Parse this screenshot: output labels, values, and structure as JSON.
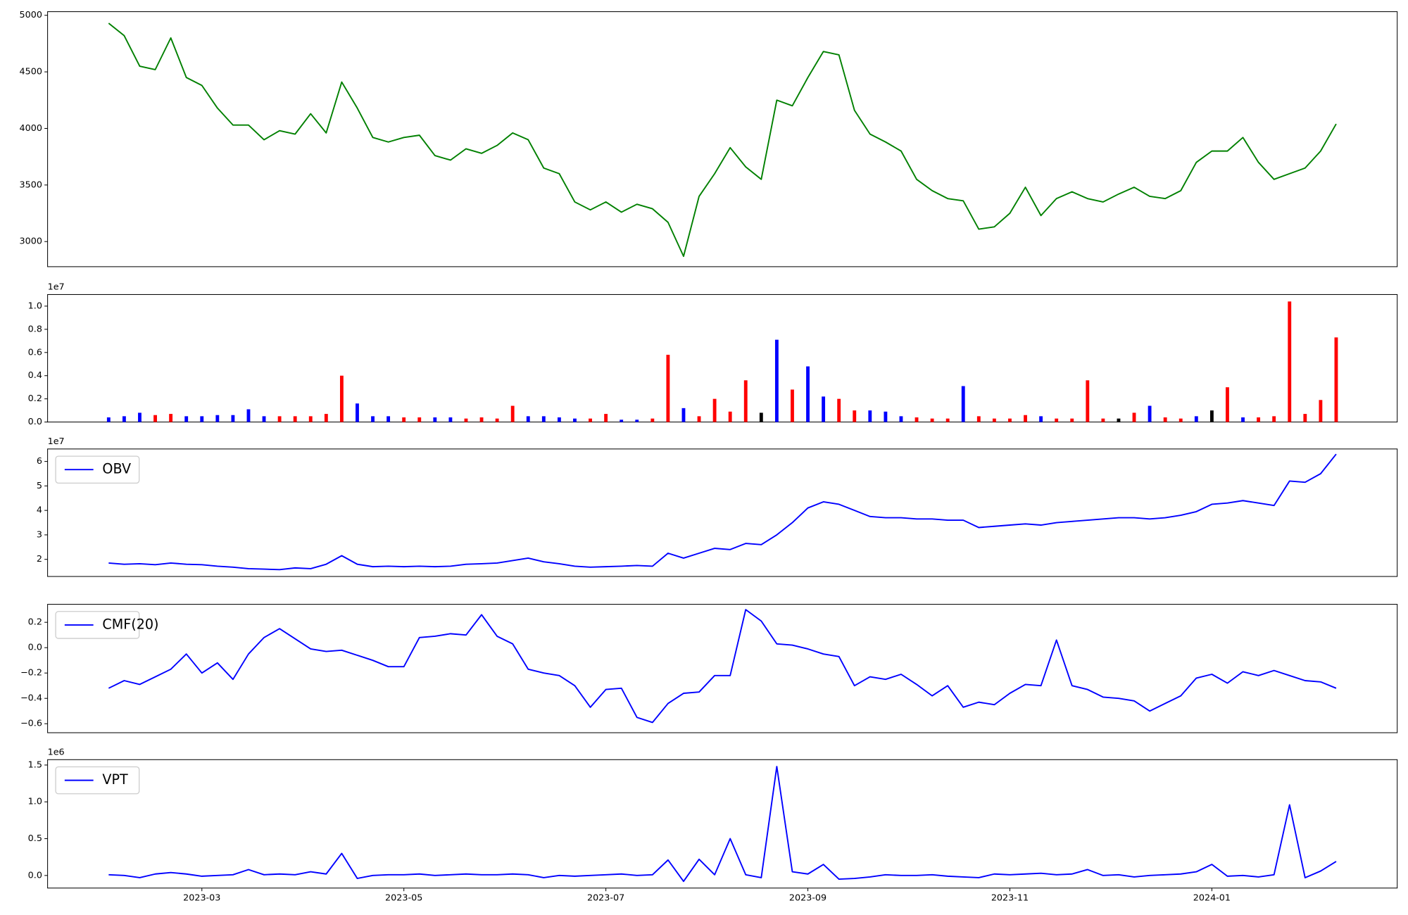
{
  "chart_data": [
    {
      "type": "line",
      "series": [
        {
          "color": "green",
          "values": [
            4930,
            4820,
            4550,
            4520,
            4800,
            4450,
            4380,
            4180,
            4030,
            4030,
            3900,
            3980,
            3950,
            4130,
            3960,
            4410,
            4180,
            3920,
            3880,
            3920,
            3940,
            3760,
            3720,
            3820,
            3780,
            3850,
            3960,
            3900,
            3650,
            3600,
            3350,
            3280,
            3350,
            3260,
            3330,
            3290,
            3170,
            2870,
            3400,
            3600,
            3830,
            3660,
            3550,
            4250,
            4200,
            4450,
            4680,
            4650,
            4160,
            3950,
            3880,
            3800,
            3550,
            3450,
            3380,
            3360,
            3110,
            3130,
            3250,
            3480,
            3230,
            3380,
            3440,
            3380,
            3350,
            3420,
            3480,
            3400,
            3380,
            3450,
            3700,
            3800,
            3800,
            3920,
            3700,
            3550,
            3600,
            3650,
            3800,
            4040
          ]
        }
      ],
      "ylim": [
        2778,
        5032
      ],
      "yticks": [
        3000,
        3500,
        4000,
        4500,
        5000
      ]
    },
    {
      "type": "bar",
      "offset_label": "1e7",
      "values": [
        0.04,
        0.05,
        0.08,
        0.06,
        0.07,
        0.05,
        0.05,
        0.06,
        0.06,
        0.11,
        0.05,
        0.05,
        0.05,
        0.05,
        0.07,
        0.4,
        0.16,
        0.05,
        0.05,
        0.04,
        0.04,
        0.04,
        0.04,
        0.03,
        0.04,
        0.03,
        0.14,
        0.05,
        0.05,
        0.04,
        0.03,
        0.03,
        0.07,
        0.02,
        0.02,
        0.03,
        0.58,
        0.12,
        0.05,
        0.2,
        0.09,
        0.36,
        0.08,
        0.71,
        0.28,
        0.48,
        0.22,
        0.2,
        0.1,
        0.1,
        0.09,
        0.05,
        0.04,
        0.03,
        0.03,
        0.31,
        0.05,
        0.03,
        0.03,
        0.06,
        0.05,
        0.03,
        0.03,
        0.36,
        0.03,
        0.03,
        0.08,
        0.14,
        0.04,
        0.03,
        0.05,
        0.1,
        0.3,
        0.04,
        0.04,
        0.05,
        1.04,
        0.07,
        0.19,
        0.73
      ],
      "bar_colors": [
        "blue",
        "blue",
        "blue",
        "red",
        "red",
        "blue",
        "blue",
        "blue",
        "blue",
        "blue",
        "blue",
        "red",
        "red",
        "red",
        "red",
        "red",
        "blue",
        "blue",
        "blue",
        "red",
        "red",
        "blue",
        "blue",
        "red",
        "red",
        "red",
        "red",
        "blue",
        "blue",
        "blue",
        "blue",
        "red",
        "red",
        "blue",
        "blue",
        "red",
        "red",
        "blue",
        "red",
        "red",
        "red",
        "red",
        "black",
        "blue",
        "red",
        "blue",
        "blue",
        "red",
        "red",
        "blue",
        "blue",
        "blue",
        "red",
        "red",
        "red",
        "blue",
        "red",
        "red",
        "red",
        "red",
        "blue",
        "red",
        "red",
        "red",
        "red",
        "black",
        "red",
        "blue",
        "red",
        "red",
        "blue",
        "black",
        "red",
        "blue",
        "red",
        "red",
        "red",
        "red",
        "red",
        "red"
      ],
      "ylim": [
        0,
        1.1
      ],
      "yticks": [
        {
          "value": 0,
          "label": "0.0"
        },
        0.2,
        0.4,
        0.6,
        0.8,
        {
          "value": 1,
          "label": "1.0"
        }
      ]
    },
    {
      "type": "line",
      "offset_label": "1e7",
      "series": [
        {
          "name": "OBV",
          "color": "blue",
          "values": [
            1.85,
            1.8,
            1.82,
            1.78,
            1.85,
            1.8,
            1.78,
            1.72,
            1.68,
            1.62,
            1.6,
            1.58,
            1.65,
            1.62,
            1.8,
            2.15,
            1.8,
            1.7,
            1.72,
            1.7,
            1.72,
            1.7,
            1.72,
            1.8,
            1.82,
            1.85,
            1.95,
            2.05,
            1.9,
            1.82,
            1.72,
            1.68,
            1.7,
            1.72,
            1.75,
            1.72,
            2.25,
            2.05,
            2.25,
            2.45,
            2.4,
            2.65,
            2.6,
            3.0,
            3.5,
            4.1,
            4.35,
            4.25,
            4.0,
            3.75,
            3.7,
            3.7,
            3.65,
            3.65,
            3.6,
            3.6,
            3.3,
            3.35,
            3.4,
            3.45,
            3.4,
            3.5,
            3.55,
            3.6,
            3.65,
            3.7,
            3.7,
            3.65,
            3.7,
            3.8,
            3.95,
            4.25,
            4.3,
            4.4,
            4.3,
            4.2,
            5.2,
            5.15,
            5.5,
            6.3
          ]
        }
      ],
      "ylim": [
        1.3,
        6.51
      ],
      "yticks": [
        2,
        3,
        4,
        5,
        6
      ]
    },
    {
      "type": "line",
      "series": [
        {
          "name": "CMF(20)",
          "color": "blue",
          "values": [
            -0.32,
            -0.26,
            -0.29,
            -0.23,
            -0.17,
            -0.05,
            -0.2,
            -0.12,
            -0.25,
            -0.05,
            0.08,
            0.15,
            0.07,
            -0.01,
            -0.03,
            -0.02,
            -0.06,
            -0.1,
            -0.15,
            -0.15,
            0.08,
            0.09,
            0.11,
            0.1,
            0.26,
            0.09,
            0.03,
            -0.17,
            -0.2,
            -0.22,
            -0.3,
            -0.47,
            -0.33,
            -0.32,
            -0.55,
            -0.59,
            -0.44,
            -0.36,
            -0.35,
            -0.22,
            -0.22,
            0.3,
            0.21,
            0.03,
            0.02,
            -0.01,
            -0.05,
            -0.07,
            -0.3,
            -0.23,
            -0.25,
            -0.21,
            -0.29,
            -0.38,
            -0.3,
            -0.47,
            -0.43,
            -0.45,
            -0.36,
            -0.29,
            -0.3,
            0.06,
            -0.3,
            -0.33,
            -0.39,
            -0.4,
            -0.42,
            -0.5,
            -0.44,
            -0.38,
            -0.24,
            -0.21,
            -0.28,
            -0.19,
            -0.22,
            -0.18,
            -0.22,
            -0.26,
            -0.27,
            -0.32
          ]
        }
      ],
      "ylim": [
        -0.671,
        0.342
      ],
      "yticks": [
        {
          "value": -0.6,
          "label": "−0.6"
        },
        {
          "value": -0.4,
          "label": "−0.4"
        },
        {
          "value": -0.2,
          "label": "−0.2"
        },
        {
          "value": 0,
          "label": "0.0"
        },
        0.2
      ]
    },
    {
      "type": "line",
      "offset_label": "1e6",
      "series": [
        {
          "name": "VPT",
          "color": "blue",
          "values": [
            0.01,
            0.0,
            -0.03,
            0.02,
            0.04,
            0.02,
            -0.01,
            0.0,
            0.01,
            0.08,
            0.01,
            0.02,
            0.01,
            0.05,
            0.02,
            0.3,
            -0.04,
            0.0,
            0.01,
            0.01,
            0.02,
            0.0,
            0.01,
            0.02,
            0.01,
            0.01,
            0.02,
            0.01,
            -0.03,
            0.0,
            -0.01,
            0.0,
            0.01,
            0.02,
            0.0,
            0.01,
            0.21,
            -0.08,
            0.22,
            0.01,
            0.5,
            0.01,
            -0.03,
            1.48,
            0.05,
            0.02,
            0.15,
            -0.05,
            -0.04,
            -0.02,
            0.01,
            0.0,
            0.0,
            0.01,
            -0.01,
            -0.02,
            -0.03,
            0.02,
            0.01,
            0.02,
            0.03,
            0.01,
            0.02,
            0.08,
            0.0,
            0.01,
            -0.02,
            0.0,
            0.01,
            0.02,
            0.05,
            0.15,
            -0.01,
            0.0,
            -0.02,
            0.01,
            0.96,
            -0.03,
            0.06,
            0.19
          ]
        }
      ],
      "ylim": [
        -0.171,
        1.573
      ],
      "yticks": [
        {
          "value": 0,
          "label": "0.0"
        },
        0.5,
        {
          "value": 1,
          "label": "1.0"
        },
        1.5
      ],
      "categories": [
        null,
        null,
        null,
        null,
        null,
        null,
        "2023-03",
        null,
        null,
        null,
        null,
        null,
        null,
        null,
        null,
        null,
        null,
        null,
        null,
        "2023-05",
        null,
        null,
        null,
        null,
        null,
        null,
        null,
        null,
        null,
        null,
        null,
        null,
        "2023-07",
        null,
        null,
        null,
        null,
        null,
        null,
        null,
        null,
        null,
        null,
        null,
        null,
        "2023-09",
        null,
        null,
        null,
        null,
        null,
        null,
        null,
        null,
        null,
        null,
        null,
        null,
        "2023-11",
        null,
        null,
        null,
        null,
        null,
        null,
        null,
        null,
        null,
        null,
        null,
        null,
        "2024-01",
        null,
        null,
        null,
        null,
        null,
        null,
        null,
        null
      ]
    }
  ]
}
